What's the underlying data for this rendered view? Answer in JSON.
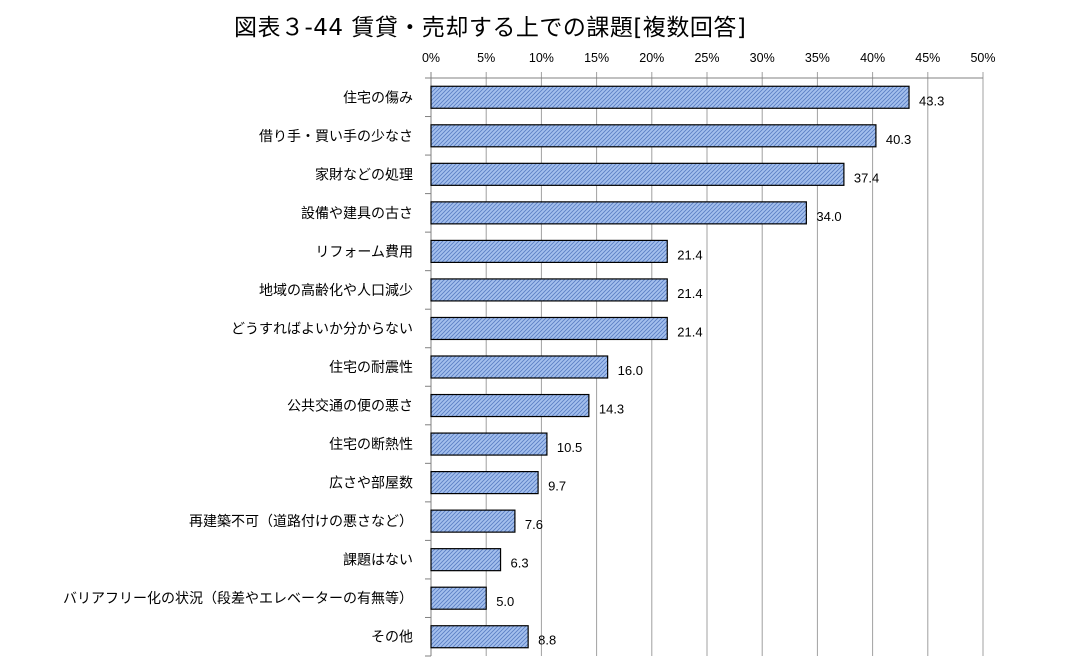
{
  "chart_data": {
    "type": "bar",
    "orientation": "horizontal",
    "title": "図表３-44 賃貸・売却する上での課題[複数回答]",
    "xlim": [
      0,
      50
    ],
    "x_ticks": [
      "0%",
      "5%",
      "10%",
      "15%",
      "20%",
      "25%",
      "30%",
      "35%",
      "40%",
      "45%",
      "50%"
    ],
    "x_axis_position": "top",
    "grid": true,
    "categories": [
      "住宅の傷み",
      "借り手・買い手の少なさ",
      "家財などの処理",
      "設備や建具の古さ",
      "リフォーム費用",
      "地域の高齢化や人口減少",
      "どうすればよいか分からない",
      "住宅の耐震性",
      "公共交通の便の悪さ",
      "住宅の断熱性",
      "広さや部屋数",
      "再建築不可（道路付けの悪さなど）",
      "課題はない",
      "バリアフリー化の状況（段差やエレベーターの有無等）",
      "その他"
    ],
    "values": [
      43.3,
      40.3,
      37.4,
      34.0,
      21.4,
      21.4,
      21.4,
      16.0,
      14.3,
      10.5,
      9.7,
      7.6,
      6.3,
      5.0,
      8.8
    ],
    "value_labels": [
      "43.3",
      "40.3",
      "37.4",
      "34.0",
      "21.4",
      "21.4",
      "21.4",
      "16.0",
      "14.3",
      "10.5",
      "9.7",
      "7.6",
      "6.3",
      "5.0",
      "8.8"
    ],
    "colors": {
      "bar_fill": "#a4c0ee",
      "bar_hatch": "#5b7fc4",
      "bar_border": "#000000",
      "grid": "#a0a0a0"
    }
  }
}
